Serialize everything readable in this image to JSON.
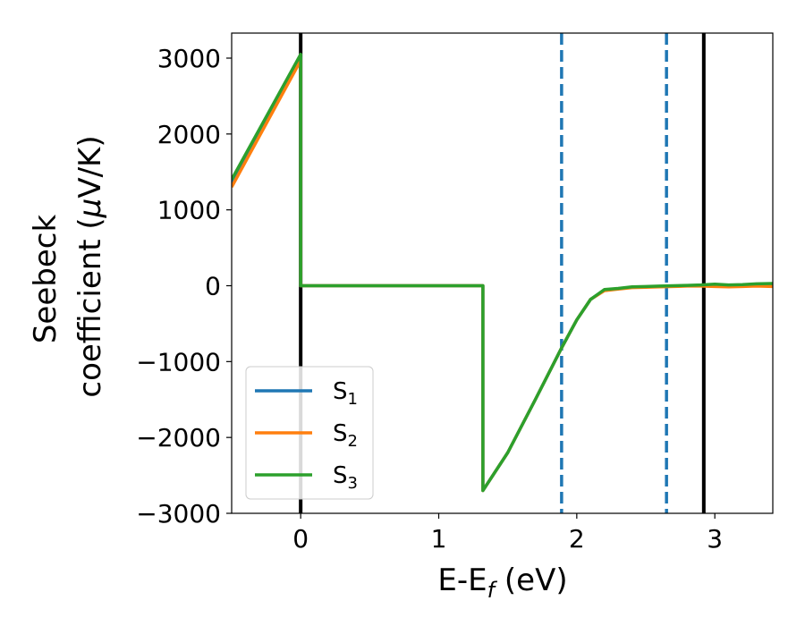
{
  "chart_data": {
    "type": "line",
    "title": "",
    "xlabel": "E-E",
    "xlabel_sub": "f",
    "xlabel_unit": " (eV)",
    "ylabel_line1": "Seebeck",
    "ylabel_line2": "coefficient  (",
    "ylabel_mu": "μ",
    "ylabel_end": "V/K)",
    "xlim": [
      -0.5,
      3.42
    ],
    "ylim": [
      -3000,
      3330
    ],
    "xticks": [
      0,
      1,
      2,
      3
    ],
    "xtick_labels": [
      "0",
      "1",
      "2",
      "3"
    ],
    "yticks": [
      -3000,
      -2000,
      -1000,
      0,
      1000,
      2000,
      3000
    ],
    "ytick_labels": [
      "−3000",
      "−2000",
      "−1000",
      "0",
      "1000",
      "2000",
      "3000"
    ],
    "grid": false,
    "legend_position": "lower-left",
    "vlines": [
      {
        "x": 0,
        "style": "solid",
        "color": "#000000"
      },
      {
        "x": 2.92,
        "style": "solid",
        "color": "#000000"
      },
      {
        "x": 1.89,
        "style": "dashed",
        "color": "#1f77b4"
      },
      {
        "x": 2.65,
        "style": "dashed",
        "color": "#1f77b4"
      }
    ],
    "series": [
      {
        "name": "S",
        "sub": "1",
        "color": "#1f77b4",
        "x": [
          -0.5,
          0.0,
          0.0,
          1.32,
          1.32,
          1.5,
          1.7,
          1.89,
          2.0,
          2.1,
          2.2,
          2.3,
          2.4,
          2.5,
          2.6,
          2.7,
          2.8,
          2.9,
          3.0,
          3.1,
          3.2,
          3.3,
          3.42
        ],
        "y": [
          1350,
          3010,
          0,
          0,
          -2700,
          -2200,
          -1500,
          -820,
          -450,
          -180,
          -60,
          -40,
          -20,
          -15,
          -10,
          -5,
          0,
          0,
          10,
          0,
          5,
          10,
          20
        ]
      },
      {
        "name": "S",
        "sub": "2",
        "color": "#ff7f0e",
        "x": [
          -0.5,
          0.0,
          0.0,
          1.32,
          1.32,
          1.5,
          1.7,
          1.89,
          2.0,
          2.1,
          2.2,
          2.3,
          2.4,
          2.5,
          2.6,
          2.7,
          2.8,
          2.9,
          3.0,
          3.1,
          3.2,
          3.3,
          3.42
        ],
        "y": [
          1300,
          2970,
          0,
          0,
          -2700,
          -2200,
          -1500,
          -820,
          -450,
          -180,
          -65,
          -45,
          -25,
          -20,
          -15,
          -10,
          -5,
          -5,
          -10,
          -15,
          -10,
          -5,
          -10
        ]
      },
      {
        "name": "S",
        "sub": "3",
        "color": "#2ca02c",
        "x": [
          -0.5,
          0.0,
          0.0,
          1.32,
          1.32,
          1.5,
          1.7,
          1.89,
          2.0,
          2.1,
          2.2,
          2.3,
          2.4,
          2.5,
          2.6,
          2.7,
          2.8,
          2.9,
          3.0,
          3.1,
          3.2,
          3.3,
          3.42
        ],
        "y": [
          1400,
          3050,
          0,
          0,
          -2700,
          -2200,
          -1500,
          -820,
          -450,
          -180,
          -50,
          -35,
          -15,
          -10,
          -5,
          0,
          5,
          10,
          20,
          10,
          15,
          25,
          30
        ]
      }
    ]
  }
}
